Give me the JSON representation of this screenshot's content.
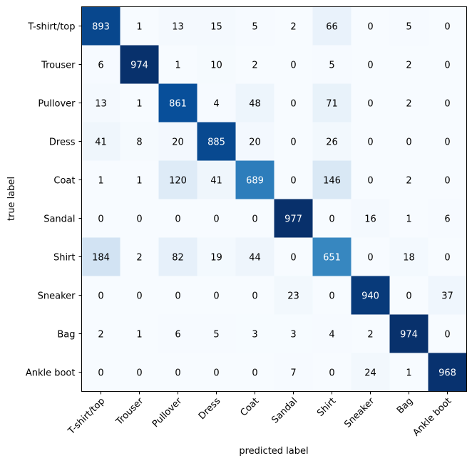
{
  "chart_data": {
    "type": "heatmap",
    "xlabel": "predicted label",
    "ylabel": "true label",
    "x_categories": [
      "T-shirt/top",
      "Trouser",
      "Pullover",
      "Dress",
      "Coat",
      "Sandal",
      "Shirt",
      "Sneaker",
      "Bag",
      "Ankle boot"
    ],
    "y_categories": [
      "T-shirt/top",
      "Trouser",
      "Pullover",
      "Dress",
      "Coat",
      "Sandal",
      "Shirt",
      "Sneaker",
      "Bag",
      "Ankle boot"
    ],
    "values": [
      [
        893,
        1,
        13,
        15,
        5,
        2,
        66,
        0,
        5,
        0
      ],
      [
        6,
        974,
        1,
        10,
        2,
        0,
        5,
        0,
        2,
        0
      ],
      [
        13,
        1,
        861,
        4,
        48,
        0,
        71,
        0,
        2,
        0
      ],
      [
        41,
        8,
        20,
        885,
        20,
        0,
        26,
        0,
        0,
        0
      ],
      [
        1,
        1,
        120,
        41,
        689,
        0,
        146,
        0,
        2,
        0
      ],
      [
        0,
        0,
        0,
        0,
        0,
        977,
        0,
        16,
        1,
        6
      ],
      [
        184,
        2,
        82,
        19,
        44,
        0,
        651,
        0,
        18,
        0
      ],
      [
        0,
        0,
        0,
        0,
        0,
        23,
        0,
        940,
        0,
        37
      ],
      [
        2,
        1,
        6,
        5,
        3,
        3,
        4,
        2,
        974,
        0
      ],
      [
        0,
        0,
        0,
        0,
        0,
        7,
        0,
        24,
        1,
        968
      ]
    ],
    "colormap": "Blues",
    "value_range": [
      0,
      977
    ],
    "colorbar": false,
    "grid": false
  }
}
